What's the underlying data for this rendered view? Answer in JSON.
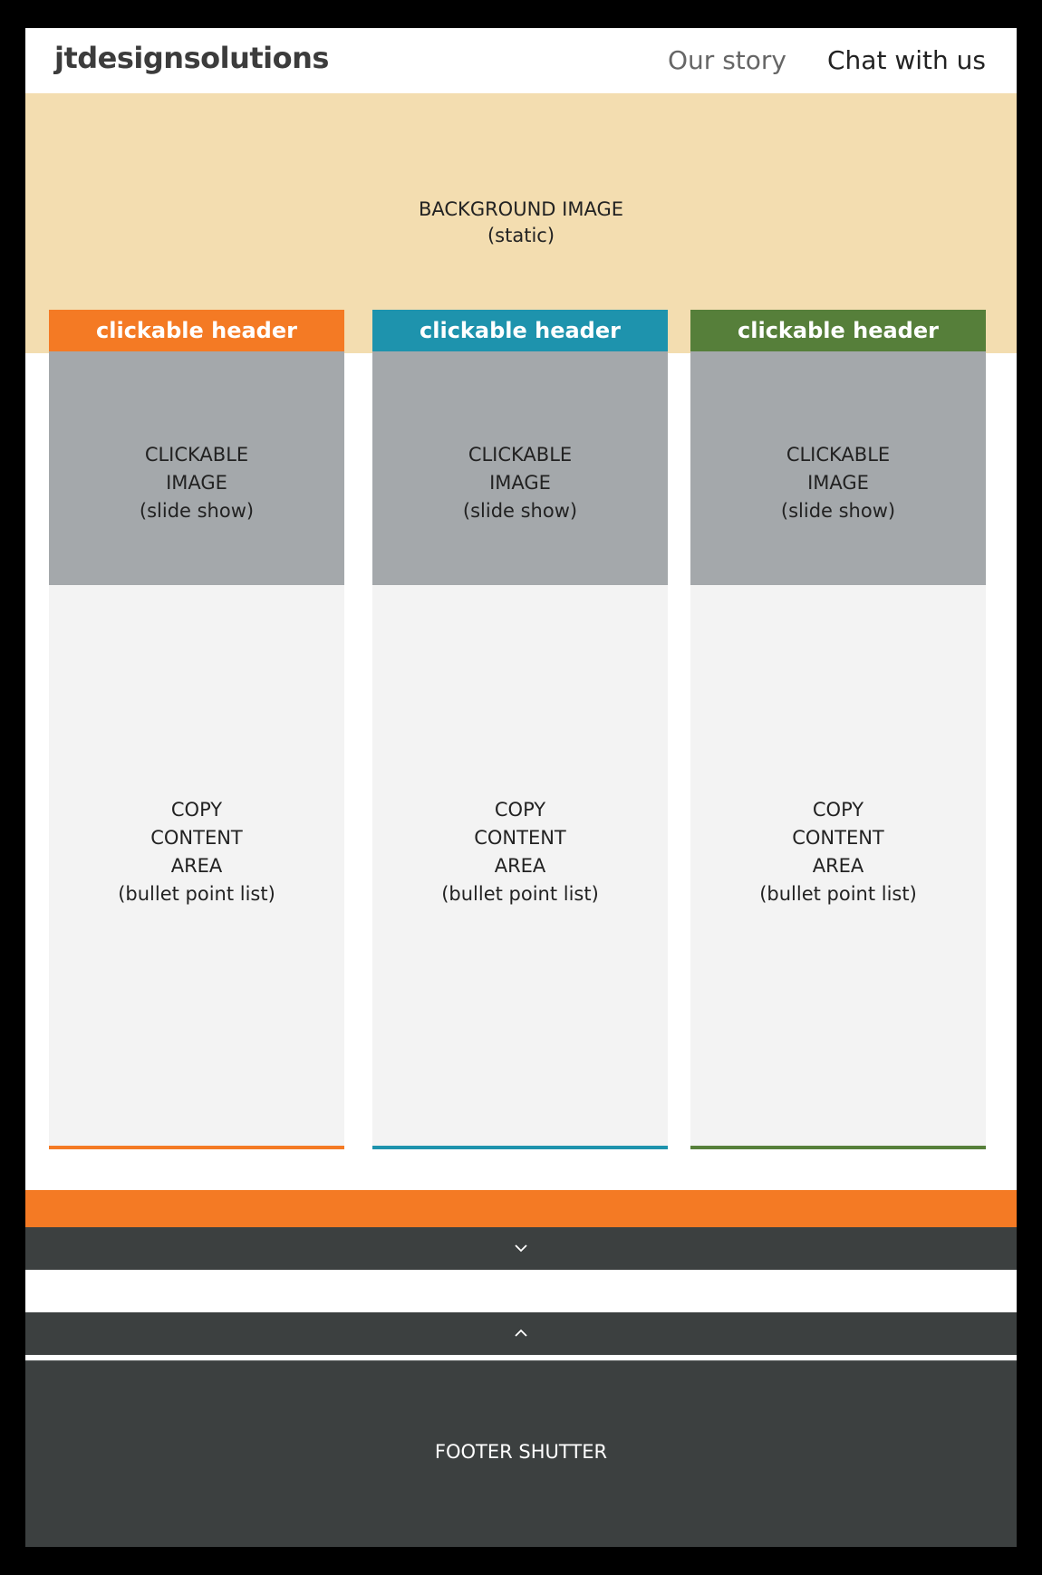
{
  "header": {
    "logo": "jtdesignsolutions",
    "nav": [
      {
        "label": "Our story"
      },
      {
        "label": "Chat with us"
      }
    ]
  },
  "hero": {
    "line1": "BACKGROUND IMAGE",
    "line2": "(static)",
    "color": "#f3ddb0"
  },
  "columns": [
    {
      "header": "clickable header",
      "accent": "#f47a24",
      "image_lines": [
        "CLICKABLE",
        "IMAGE",
        "(slide show)"
      ],
      "copy_lines": [
        "COPY",
        "CONTENT",
        "AREA",
        "(bullet point list)"
      ]
    },
    {
      "header": "clickable header",
      "accent": "#1e93ad",
      "image_lines": [
        "CLICKABLE",
        "IMAGE",
        "(slide show)"
      ],
      "copy_lines": [
        "COPY",
        "CONTENT",
        "AREA",
        "(bullet point list)"
      ]
    },
    {
      "header": "clickable header",
      "accent": "#567f3a",
      "image_lines": [
        "CLICKABLE",
        "IMAGE",
        "(slide show)"
      ],
      "copy_lines": [
        "COPY",
        "CONTENT",
        "AREA",
        "(bullet point list)"
      ]
    }
  ],
  "bands": {
    "orange": "#f47a24",
    "dark": "#3c4040"
  },
  "icons": {
    "expand": "chevron-down-icon",
    "collapse": "chevron-up-icon"
  },
  "footer": {
    "label": "FOOTER SHUTTER"
  }
}
